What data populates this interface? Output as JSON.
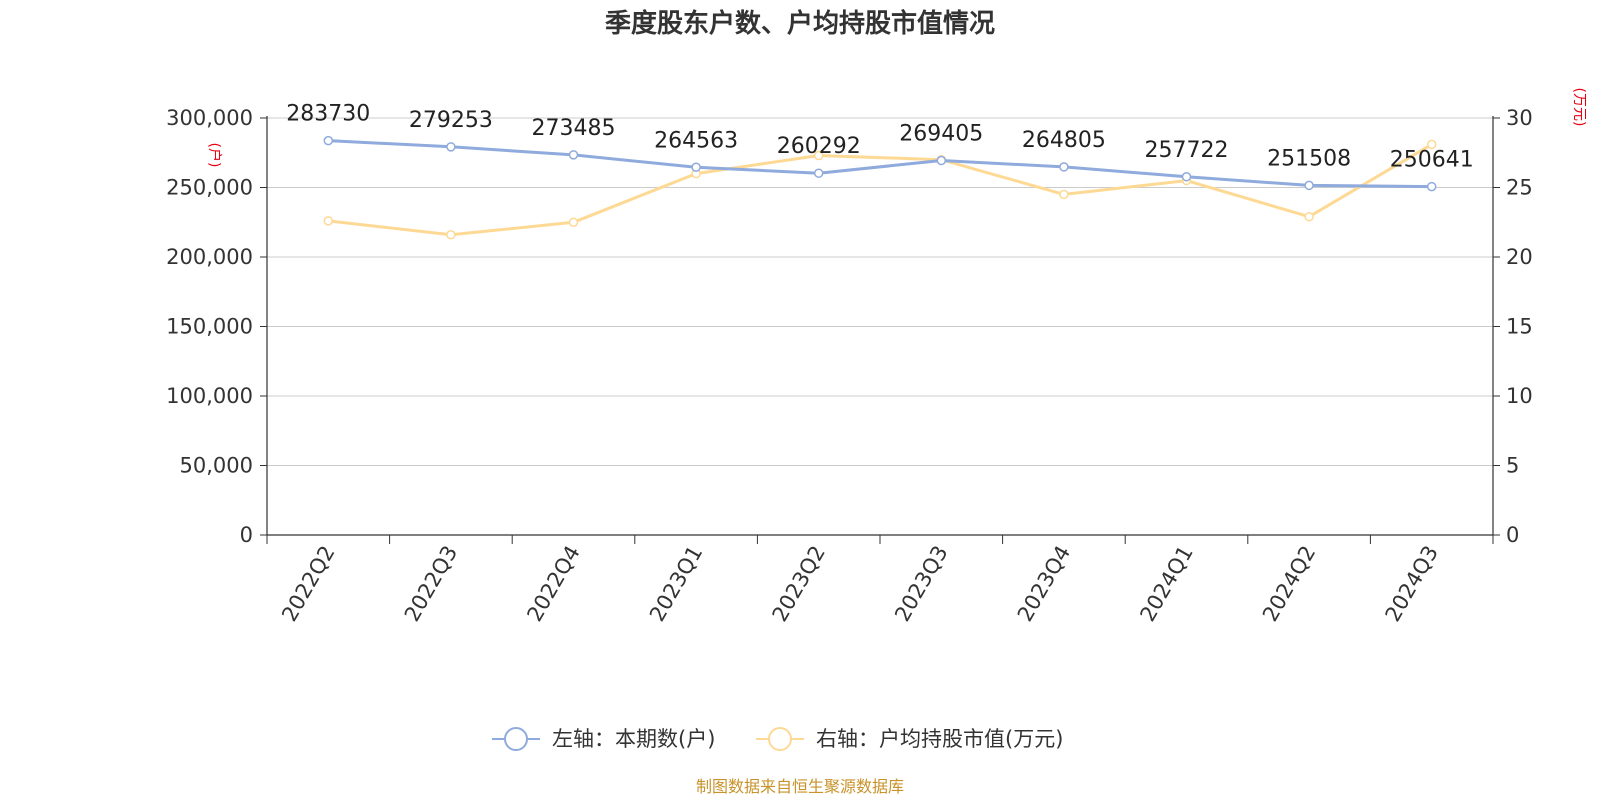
{
  "chart_data": {
    "type": "line",
    "title": "季度股东户数、户均持股市值情况",
    "categories": [
      "2022Q2",
      "2022Q3",
      "2022Q4",
      "2023Q1",
      "2023Q2",
      "2023Q3",
      "2023Q4",
      "2024Q1",
      "2024Q2",
      "2024Q3"
    ],
    "y_left": {
      "unit": "(户)",
      "range": [
        0,
        300000
      ],
      "ticks": [
        0,
        50000,
        100000,
        150000,
        200000,
        250000,
        300000
      ],
      "tick_labels": [
        "0",
        "50,000",
        "100,000",
        "150,000",
        "200,000",
        "250,000",
        "300,000"
      ]
    },
    "y_right": {
      "unit": "(万元)",
      "range": [
        0,
        30
      ],
      "ticks": [
        0,
        5,
        10,
        15,
        20,
        25,
        30
      ],
      "tick_labels": [
        "0",
        "5",
        "10",
        "15",
        "20",
        "25",
        "30"
      ]
    },
    "series": [
      {
        "name": "左轴：本期数(户)",
        "axis": "left",
        "color": "#8faadc",
        "values": [
          283730,
          279253,
          273485,
          264563,
          260292,
          269405,
          264805,
          257722,
          251508,
          250641
        ],
        "labels": [
          "283730",
          "279253",
          "273485",
          "264563",
          "260292",
          "269405",
          "264805",
          "257722",
          "251508",
          "250641"
        ]
      },
      {
        "name": "右轴：户均持股市值(万元)",
        "axis": "right",
        "color": "#fdd994",
        "values": [
          22.6,
          21.6,
          22.5,
          26.0,
          27.3,
          27.0,
          24.5,
          25.5,
          22.9,
          28.1
        ]
      }
    ],
    "grid": true,
    "legend_position": "bottom-center"
  },
  "source": "制图数据来自恒生聚源数据库",
  "colors": {
    "unit_label": "#e60012",
    "source_text": "#c8932a",
    "grid": "#cccccc",
    "axis": "#333333"
  }
}
